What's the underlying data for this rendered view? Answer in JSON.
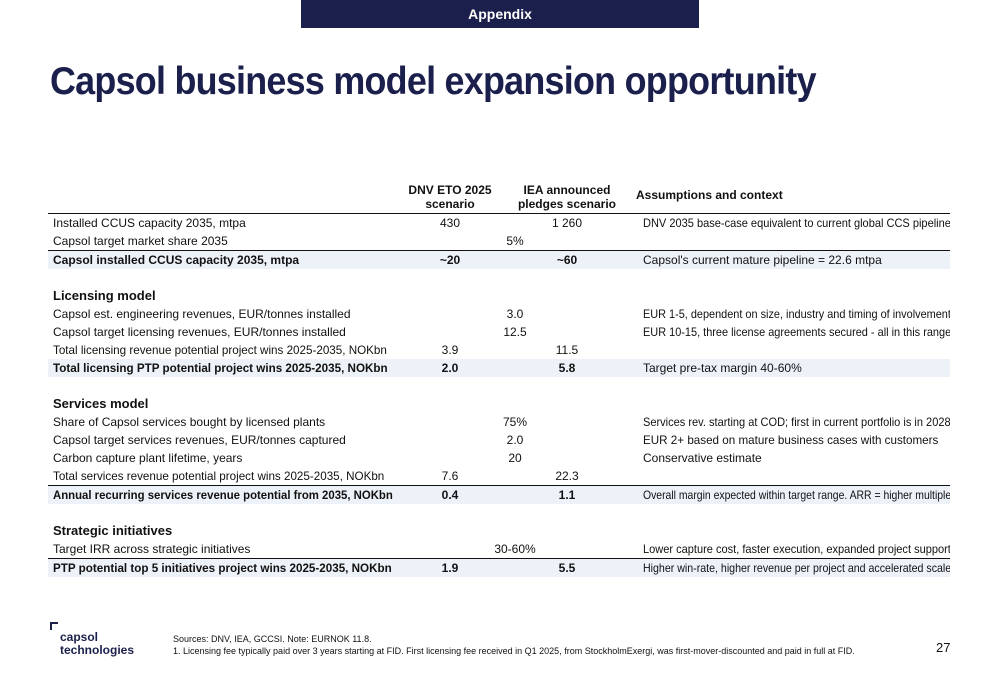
{
  "header": {
    "tag": "Appendix",
    "title": "Capsol business model expansion opportunity"
  },
  "table": {
    "columns": [
      "",
      "DNV ETO 2025 scenario",
      "IEA announced pledges scenario",
      "Assumptions and context"
    ],
    "column_lines": {
      "dnv": [
        "DNV ETO 2025",
        "scenario"
      ],
      "iea": [
        "IEA announced",
        "pledges scenario"
      ]
    },
    "rows": [
      {
        "label": "Installed CCUS capacity 2035, mtpa",
        "dnv": "430",
        "iea": "1 260",
        "ctx": "DNV 2035 base-case equivalent to current global CCS pipeline"
      },
      {
        "label": "Capsol target market share 2035",
        "shared": "5%",
        "ctx": ""
      },
      {
        "label": "Capsol installed CCUS capacity 2035, mtpa",
        "dnv": "~20",
        "iea": "~60",
        "ctx": "Capsol's current mature pipeline = 22.6 mtpa"
      },
      {
        "section": "Licensing model"
      },
      {
        "label": "Capsol est. engineering revenues, EUR/tonnes installed",
        "shared": "3.0",
        "ctx": "EUR 1-5, dependent on size, industry and timing of involvement"
      },
      {
        "label": "Capsol target licensing revenues, EUR/tonnes installed",
        "shared": "12.5",
        "ctx": "EUR 10-15, three license agreements secured - all in this range"
      },
      {
        "label": "Total licensing revenue potential project wins 2025-2035, NOKbn",
        "dnv": "3.9",
        "iea": "11.5",
        "ctx": ""
      },
      {
        "label": "Total licensing PTP potential project wins 2025-2035, NOKbn",
        "dnv": "2.0",
        "iea": "5.8",
        "ctx": "Target pre-tax margin 40-60%"
      },
      {
        "section": "Services model"
      },
      {
        "label": "Share of Capsol services bought by licensed plants",
        "shared": "75%",
        "ctx": "Services rev. starting at COD; first in current portfolio is in 2028"
      },
      {
        "label": "Capsol target services revenues, EUR/tonnes captured",
        "shared": "2.0",
        "ctx": "EUR 2+ based on mature business cases with customers"
      },
      {
        "label": "Carbon capture plant lifetime, years",
        "shared": "20",
        "ctx": "Conservative estimate"
      },
      {
        "label": "Total services revenue potential project wins 2025-2035, NOKbn",
        "dnv": "7.6",
        "iea": "22.3",
        "ctx": ""
      },
      {
        "label": "Annual recurring services revenue potential from 2035, NOKbn",
        "dnv": "0.4",
        "iea": "1.1",
        "ctx": "Overall margin expected within target range. ARR = higher multiple"
      },
      {
        "section": "Strategic initiatives"
      },
      {
        "label": "Target IRR across strategic initiatives",
        "shared": "30-60%",
        "ctx": "Lower capture cost, faster execution, expanded project support"
      },
      {
        "label": "PTP potential top 5 initiatives project wins 2025-2035, NOKbn",
        "dnv": "1.9",
        "iea": "5.5",
        "ctx": "Higher win-rate, higher revenue per project and accelerated scale"
      }
    ]
  },
  "footer": {
    "logo_lines": [
      "capsol",
      "technologies"
    ],
    "sources": "Sources: DNV, IEA, GCCSI. Note: EURNOK 11.8.",
    "note": "1. Licensing fee typically paid over 3 years starting at FID. First licensing fee received in Q1 2025, from StockholmExergi, was first-mover-discounted and paid in full at FID.",
    "page_number": "27"
  },
  "colors": {
    "navy": "#1b1f4b",
    "row_highlight": "#edf1f8"
  }
}
